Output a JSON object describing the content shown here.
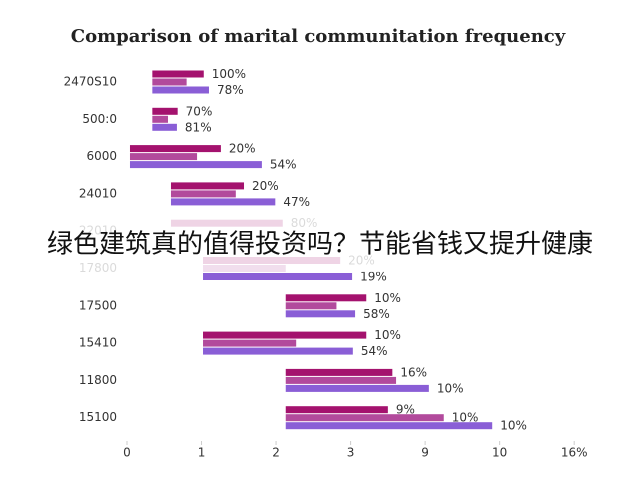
{
  "chart_data": {
    "type": "floating-bar",
    "title": "Comparison of marital communitation frequency",
    "categories": [
      "2470S10",
      "500:0",
      "6000",
      "24010",
      "22010",
      "17800",
      "17500",
      "15410",
      "11800",
      "15100"
    ],
    "xlim": [
      0,
      6.4
    ],
    "xticks": [
      {
        "value": 0,
        "label": "0"
      },
      {
        "value": 1,
        "label": "1"
      },
      {
        "value": 2,
        "label": "2"
      },
      {
        "value": 3,
        "label": "3"
      },
      {
        "value": 4,
        "label": "9"
      },
      {
        "value": 5,
        "label": "10"
      },
      {
        "value": 6,
        "label": "16%"
      }
    ],
    "series": [
      {
        "color": "#a4126e",
        "starts": [
          0.34,
          0.34,
          0.04,
          0.59,
          0.59,
          1.02,
          2.13,
          1.02,
          2.13,
          2.13
        ],
        "values": [
          1.03,
          0.68,
          1.26,
          1.57,
          2.09,
          2.86,
          3.21,
          3.21,
          3.56,
          3.5
        ],
        "labels": [
          "100%",
          "70%",
          "20%",
          "20%",
          "80%",
          "20%",
          "10%",
          "10%",
          "16%",
          "9%"
        ]
      },
      {
        "color": "#b24a9c",
        "starts": [
          0.34,
          0.34,
          0.04,
          0.59,
          null,
          1.02,
          2.13,
          1.02,
          2.13,
          2.13
        ],
        "values": [
          0.8,
          0.55,
          0.94,
          1.46,
          null,
          2.13,
          2.81,
          2.27,
          3.61,
          4.25
        ],
        "labels": [
          null,
          null,
          null,
          null,
          null,
          null,
          null,
          null,
          null,
          "10%"
        ]
      },
      {
        "color": "#8a5ed6",
        "starts": [
          0.34,
          0.34,
          0.04,
          0.59,
          null,
          1.02,
          2.13,
          1.02,
          2.13,
          2.13
        ],
        "values": [
          1.1,
          0.67,
          1.81,
          1.99,
          null,
          3.02,
          3.06,
          3.03,
          4.05,
          4.9
        ],
        "labels": [
          "78%",
          "81%",
          "54%",
          "47%",
          null,
          "19%",
          "58%",
          "54%",
          "10%",
          "10%"
        ]
      }
    ]
  },
  "overlay_text": "绿色建筑真的值得投资吗？节能省钱又提升健康"
}
